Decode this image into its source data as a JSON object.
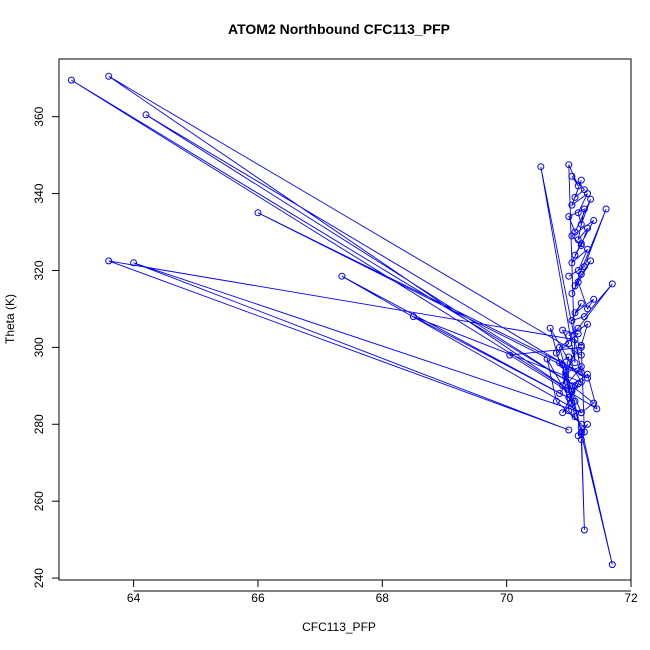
{
  "chart_data": {
    "type": "line",
    "title": "ATOM2 Northbound CFC113_PFP",
    "xlabel": "CFC113_PFP",
    "ylabel": "Theta (K)",
    "xlim": [
      62.8,
      72.0
    ],
    "ylim": [
      239.5,
      375.0
    ],
    "xticks": [
      64,
      66,
      68,
      70,
      72
    ],
    "yticks": [
      240,
      260,
      280,
      300,
      320,
      340,
      360
    ],
    "color": "#0000ff",
    "markers": "open-circle",
    "grid": false,
    "series": [
      {
        "x": [
          71.2,
          63.6,
          71.0,
          63.0,
          71.1,
          64.2,
          71.3,
          66.0,
          71.2,
          70.55,
          71.1,
          71.0,
          71.15,
          71.05,
          71.25,
          71.1,
          71.2,
          71.05,
          71.3,
          71.15,
          71.2,
          71.35,
          71.1,
          71.0,
          71.25,
          71.15,
          71.3,
          71.2,
          71.05,
          71.4,
          71.1,
          71.2,
          71.05,
          71.3,
          71.15,
          71.0,
          71.25,
          71.6,
          71.1,
          71.2,
          71.35,
          71.05,
          71.15,
          71.3,
          71.4,
          71.1,
          71.2,
          71.05,
          71.25,
          71.7,
          71.15,
          71.0,
          71.3,
          71.2,
          71.1,
          63.6,
          71.0,
          64.0,
          71.2,
          67.35,
          71.1,
          68.5,
          71.2,
          70.7,
          70.85,
          71.0,
          70.9,
          71.1,
          70.95,
          71.2,
          70.85,
          71.0,
          71.15,
          70.9,
          71.05,
          70.65,
          70.8,
          71.2,
          71.0,
          70.9,
          71.1,
          70.95,
          71.2,
          71.05,
          70.85,
          71.15,
          70.9,
          71.0,
          70.8,
          71.2,
          71.4,
          71.05,
          71.3,
          71.45,
          70.05,
          71.2,
          71.25,
          71.15,
          71.3,
          71.2,
          71.7,
          71.2,
          71.25,
          71.2
        ],
        "y": [
          298.0,
          370.5,
          289.0,
          369.5,
          290.0,
          360.5,
          292.0,
          335.0,
          293.5,
          347.0,
          296.0,
          347.5,
          342.0,
          344.5,
          341.0,
          339.0,
          343.5,
          337.0,
          340.0,
          335.0,
          332.0,
          338.5,
          330.0,
          334.0,
          336.0,
          328.0,
          331.0,
          326.5,
          329.0,
          333.0,
          324.0,
          327.0,
          322.0,
          325.5,
          320.0,
          318.5,
          321.0,
          336.0,
          316.0,
          319.0,
          322.5,
          314.0,
          317.0,
          310.0,
          312.5,
          309.0,
          311.5,
          307.0,
          308.0,
          316.5,
          305.0,
          303.0,
          306.0,
          300.5,
          302.0,
          322.5,
          278.5,
          322.0,
          283.0,
          318.5,
          286.0,
          308.0,
          291.0,
          305.0,
          296.0,
          297.5,
          290.0,
          299.0,
          293.5,
          295.0,
          288.0,
          287.0,
          290.5,
          283.0,
          285.5,
          297.0,
          286.0,
          280.0,
          283.5,
          295.5,
          282.0,
          292.5,
          278.0,
          288.5,
          300.0,
          303.5,
          304.5,
          301.0,
          298.5,
          283.0,
          285.5,
          290.0,
          293.0,
          284.0,
          298.0,
          300.0,
          278.0,
          277.0,
          280.0,
          277.5,
          243.5,
          279.0,
          252.5,
          276.0
        ]
      }
    ]
  }
}
